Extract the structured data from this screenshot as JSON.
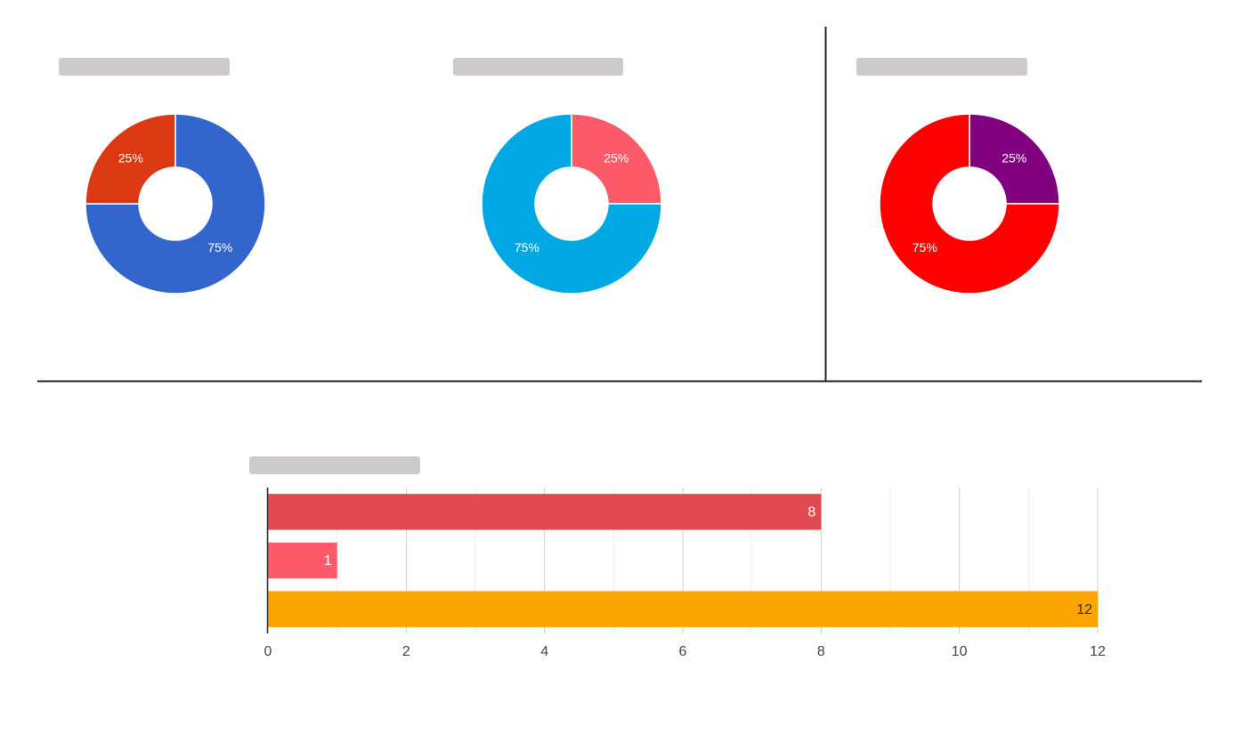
{
  "chart_data": [
    {
      "type": "donut",
      "values": [
        75,
        25
      ],
      "value_labels": [
        "75%",
        "25%"
      ],
      "colors": [
        "#3366cc",
        "#dc3912"
      ]
    },
    {
      "type": "donut",
      "values": [
        25,
        75
      ],
      "value_labels": [
        "25%",
        "75%"
      ],
      "colors": [
        "#ff5a6a",
        "#00a8e3"
      ]
    },
    {
      "type": "donut",
      "values": [
        25,
        75
      ],
      "value_labels": [
        "25%",
        "75%"
      ],
      "colors": [
        "#800080",
        "#ff0000"
      ]
    },
    {
      "type": "hbar",
      "categories": [
        null,
        null,
        null
      ],
      "values": [
        8,
        1,
        12
      ],
      "colors": [
        "#e04a50",
        "#ff5a6a",
        "#fba500"
      ],
      "value_label_colors": [
        "#ffffff",
        "#ffffff",
        "#333333"
      ],
      "xlim": [
        0,
        12
      ],
      "xticks": [
        0,
        2,
        4,
        6,
        8,
        10,
        12
      ],
      "grid": true,
      "minor_grid": true
    }
  ]
}
